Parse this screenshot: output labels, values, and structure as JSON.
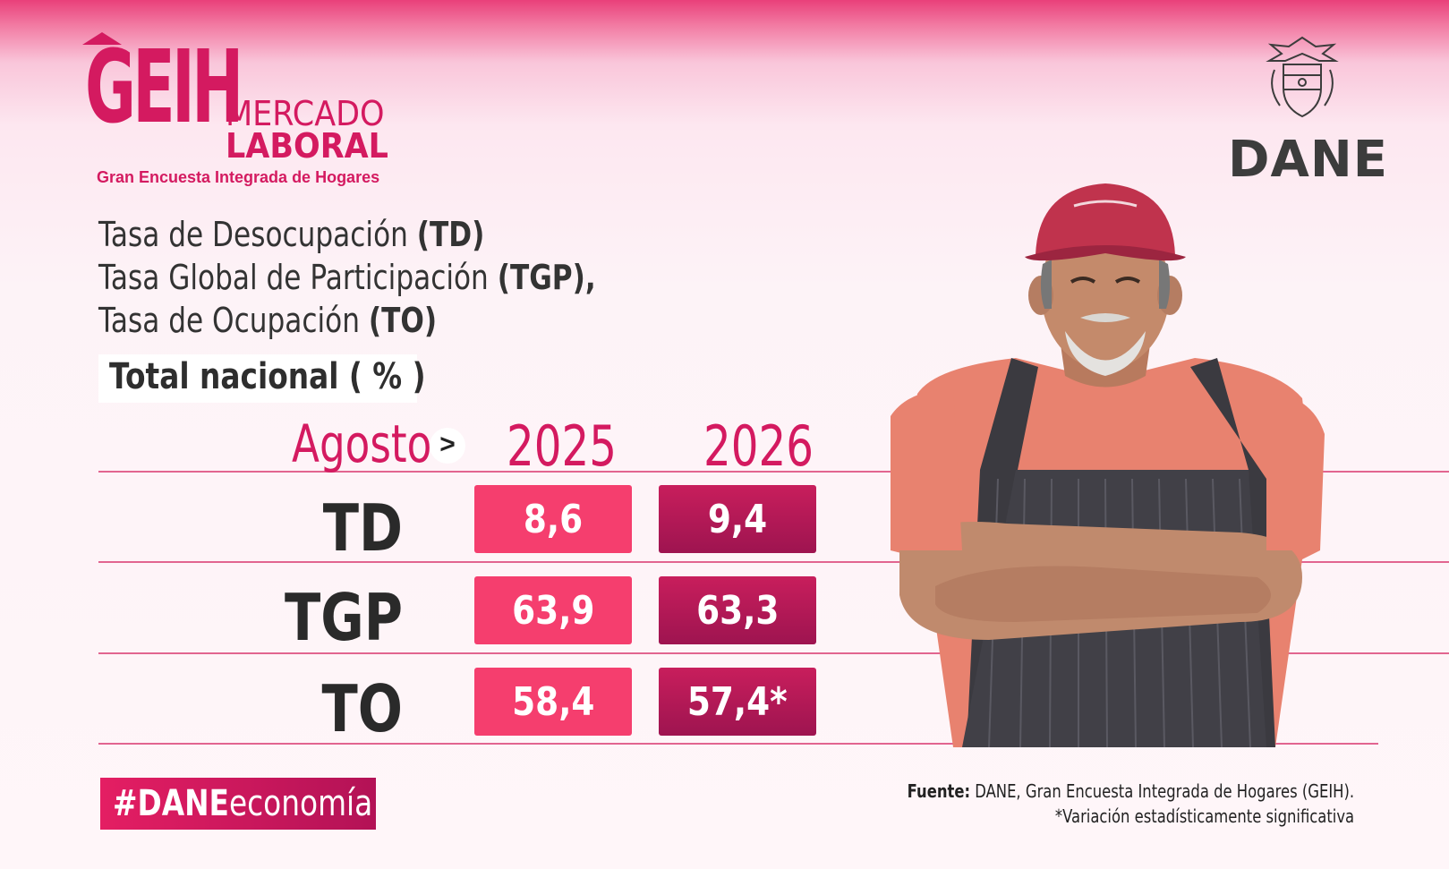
{
  "brand": {
    "logo_main": "GEIH",
    "logo_line1": "MERCADO",
    "logo_line2": "LABORAL",
    "logo_subtitle": "Gran Encuesta Integrada de Hogares",
    "institution": "DANE"
  },
  "title": {
    "line1_text": "Tasa de Desocupación",
    "line1_abbr": "(TD)",
    "line2_text": "Tasa Global de Participación",
    "line2_abbr": "(TGP),",
    "line3_text": "Tasa de Ocupación",
    "line3_abbr": "(TO)"
  },
  "scope_label": "Total nacional ( % )",
  "table": {
    "period_label": "Agosto",
    "chevron": ">",
    "year_prev": "2025",
    "year_curr": "2026",
    "rows": [
      {
        "label": "TD",
        "prev": "8,6",
        "curr": "9,4"
      },
      {
        "label": "TGP",
        "prev": "63,9",
        "curr": "63,3"
      },
      {
        "label": "TO",
        "prev": "58,4",
        "curr": "57,4*"
      }
    ]
  },
  "hashtag": {
    "bold": "#DANE",
    "rest": "economía"
  },
  "source": {
    "label": "Fuente:",
    "text": "DANE, Gran Encuesta Integrada de Hogares (GEIH).",
    "note": "*Variación estadísticamente significativa"
  },
  "colors": {
    "brand_pink": "#d41a60",
    "cell_2025": "#f53e6e",
    "cell_2026": "#b01755",
    "text_dark": "#2a2a2a"
  }
}
